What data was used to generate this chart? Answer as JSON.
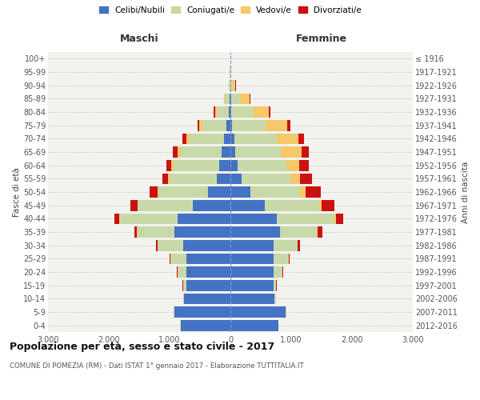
{
  "age_groups": [
    "0-4",
    "5-9",
    "10-14",
    "15-19",
    "20-24",
    "25-29",
    "30-34",
    "35-39",
    "40-44",
    "45-49",
    "50-54",
    "55-59",
    "60-64",
    "65-69",
    "70-74",
    "75-79",
    "80-84",
    "85-89",
    "90-94",
    "95-99",
    "100+"
  ],
  "birth_years": [
    "2012-2016",
    "2007-2011",
    "2002-2006",
    "1997-2001",
    "1992-1996",
    "1987-1991",
    "1982-1986",
    "1977-1981",
    "1972-1976",
    "1967-1971",
    "1962-1966",
    "1957-1961",
    "1952-1956",
    "1947-1951",
    "1942-1946",
    "1937-1941",
    "1932-1936",
    "1927-1931",
    "1922-1926",
    "1917-1921",
    "≤ 1916"
  ],
  "males_celibe": [
    820,
    920,
    760,
    730,
    720,
    730,
    770,
    920,
    870,
    620,
    370,
    220,
    180,
    140,
    110,
    60,
    25,
    10,
    5,
    3,
    2
  ],
  "males_coniugato": [
    5,
    10,
    20,
    50,
    150,
    260,
    430,
    610,
    950,
    900,
    810,
    780,
    760,
    680,
    560,
    400,
    200,
    80,
    20,
    5,
    2
  ],
  "males_vedovo": [
    0,
    0,
    0,
    1,
    1,
    2,
    3,
    5,
    8,
    10,
    15,
    20,
    30,
    50,
    60,
    50,
    30,
    15,
    5,
    2,
    0
  ],
  "males_divorziato": [
    0,
    0,
    1,
    2,
    5,
    10,
    20,
    50,
    80,
    120,
    130,
    100,
    85,
    75,
    55,
    35,
    15,
    5,
    2,
    0,
    0
  ],
  "fem_nubile": [
    790,
    910,
    730,
    710,
    710,
    710,
    710,
    810,
    760,
    560,
    330,
    190,
    120,
    80,
    60,
    30,
    15,
    10,
    5,
    3,
    2
  ],
  "fem_coniugata": [
    5,
    8,
    15,
    45,
    140,
    240,
    390,
    610,
    950,
    900,
    820,
    800,
    800,
    755,
    700,
    550,
    360,
    150,
    30,
    5,
    2
  ],
  "fem_vedova": [
    0,
    0,
    0,
    1,
    2,
    4,
    6,
    12,
    22,
    45,
    85,
    155,
    210,
    330,
    360,
    355,
    260,
    155,
    50,
    10,
    2
  ],
  "fem_divorziata": [
    0,
    0,
    1,
    4,
    10,
    18,
    35,
    85,
    125,
    205,
    255,
    200,
    155,
    125,
    85,
    55,
    20,
    8,
    3,
    0,
    0
  ],
  "colors": {
    "celibe": "#4472C4",
    "coniugato": "#C8D9A8",
    "vedovo": "#F5C96A",
    "divorziato": "#CC1111"
  },
  "xlim": 3000,
  "xtick_vals": [
    -3000,
    -2000,
    -1000,
    0,
    1000,
    2000,
    3000
  ],
  "title": "Popolazione per età, sesso e stato civile - 2017",
  "subtitle": "COMUNE DI POMEZIA (RM) - Dati ISTAT 1° gennaio 2017 - Elaborazione TUTTITALIA.IT",
  "header_left": "Maschi",
  "header_right": "Femmine",
  "ylabel_left": "Fasce di età",
  "ylabel_right": "Anni di nascita",
  "legend_labels": [
    "Celibi/Nubili",
    "Coniugati/e",
    "Vedovi/e",
    "Divorziati/e"
  ],
  "bg_color": "#FFFFFF",
  "plot_bg": "#F2F2EE",
  "grid_color": "#CCCCCC"
}
